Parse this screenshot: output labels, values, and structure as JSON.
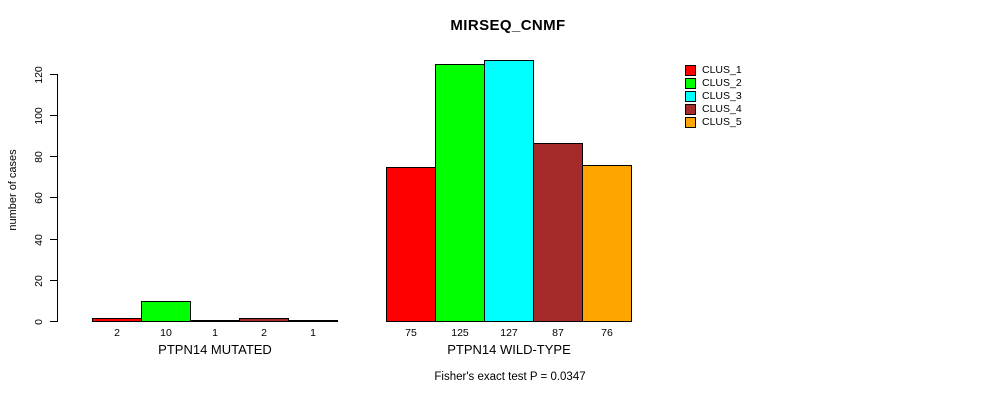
{
  "chart_data": {
    "type": "bar",
    "title": "MIRSEQ_CNMF",
    "ylabel": "number of cases",
    "xlabel": "",
    "ylim": [
      0,
      120
    ],
    "yticks": [
      0,
      20,
      40,
      60,
      80,
      100,
      120
    ],
    "grid": false,
    "legend_position": "topright",
    "categories": [
      "PTPN14 MUTATED",
      "PTPN14 WILD-TYPE"
    ],
    "series": [
      {
        "name": "CLUS_1",
        "color": "#FF0000",
        "values": [
          2,
          75
        ]
      },
      {
        "name": "CLUS_2",
        "color": "#00FF00",
        "values": [
          10,
          125
        ]
      },
      {
        "name": "CLUS_3",
        "color": "#00FFFF",
        "values": [
          1,
          127
        ]
      },
      {
        "name": "CLUS_4",
        "color": "#A52A2A",
        "values": [
          2,
          87
        ]
      },
      {
        "name": "CLUS_5",
        "color": "#FFA500",
        "values": [
          1,
          76
        ]
      }
    ],
    "bar_value_labels": [
      [
        "2",
        "10",
        "1",
        "2",
        "1"
      ],
      [
        "75",
        "125",
        "127",
        "87",
        "76"
      ]
    ],
    "annotation": "Fisher's exact test P = 0.0347",
    "axis_color": "#000000",
    "background_color": "#FFFFFF"
  }
}
